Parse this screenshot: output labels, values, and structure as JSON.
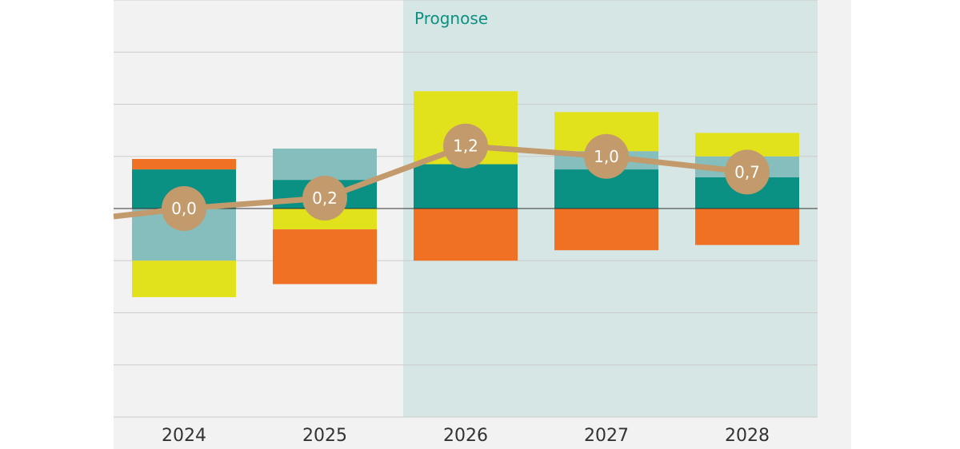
{
  "chart_data": {
    "type": "bar",
    "stacked": true,
    "categories": [
      "2024",
      "2025",
      "2026",
      "2027",
      "2028"
    ],
    "forecast": {
      "label": "Prognose",
      "from": "2026",
      "to": "2028"
    },
    "ylim": [
      -4,
      4
    ],
    "grid": true,
    "series": [
      {
        "color": "#0a9184",
        "values": [
          0.75,
          0.55,
          0.85,
          0.75,
          0.6
        ]
      },
      {
        "color": "#86bdbd",
        "values": [
          -1.0,
          0.6,
          0.0,
          0.35,
          0.4
        ]
      },
      {
        "color": "#e2e21c",
        "values": [
          -0.7,
          -0.4,
          1.4,
          0.75,
          0.45
        ]
      },
      {
        "color": "#f07024",
        "values": [
          0.2,
          -1.05,
          -1.0,
          -0.8,
          -0.7
        ]
      }
    ],
    "line": {
      "color": "#c29a6b",
      "values": [
        0.0,
        0.2,
        1.2,
        1.0,
        0.7
      ],
      "labels": [
        "0,0",
        "0,2",
        "1,2",
        "1,0",
        "0,7"
      ]
    },
    "colors": {
      "plot_background": "#f2f2f2",
      "forecast_background": "#d6e6e4",
      "forecast_label": "#0a9184",
      "gridline": "#cccccc",
      "zero_line": "#333333"
    }
  }
}
